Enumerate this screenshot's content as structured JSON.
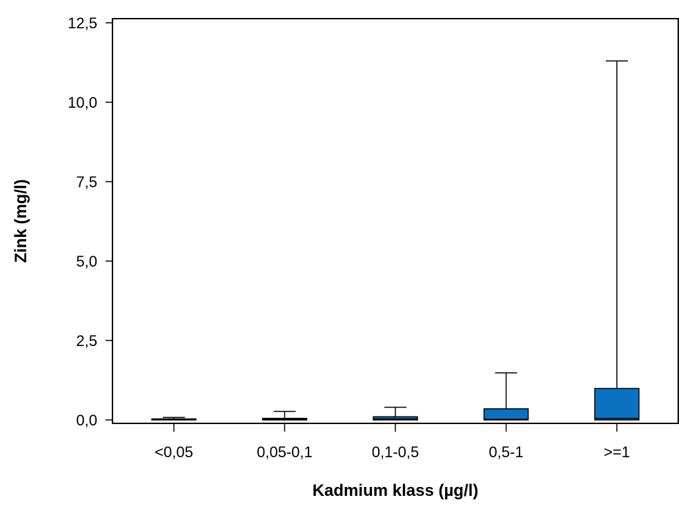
{
  "chart_data": {
    "type": "box",
    "title": "",
    "xlabel": "Kadmium klass (µg/l)",
    "ylabel": "Zink (mg/l)",
    "ylim": [
      -0.1,
      12.6
    ],
    "y_ticks": [
      0,
      2.5,
      5,
      7.5,
      10,
      12.5
    ],
    "y_tick_labels": [
      "0,0",
      "2,5",
      "5,0",
      "7,5",
      "10,0",
      "12,5"
    ],
    "categories": [
      "<0,05",
      "0,05-0,1",
      "0,1-0,5",
      "0,5-1",
      ">=1"
    ],
    "boxes": [
      {
        "category": "<0,05",
        "min": 0.0,
        "q1": 0.0,
        "median": 0.01,
        "q3": 0.03,
        "max": 0.08
      },
      {
        "category": "0,05-0,1",
        "min": 0.0,
        "q1": 0.0,
        "median": 0.02,
        "q3": 0.05,
        "max": 0.27
      },
      {
        "category": "0,1-0,5",
        "min": 0.0,
        "q1": 0.0,
        "median": 0.03,
        "q3": 0.1,
        "max": 0.4
      },
      {
        "category": "0,5-1",
        "min": 0.0,
        "q1": 0.0,
        "median": 0.02,
        "q3": 0.35,
        "max": 1.48
      },
      {
        "category": ">=1",
        "min": 0.0,
        "q1": 0.0,
        "median": 0.05,
        "q3": 0.99,
        "max": 11.3
      }
    ],
    "box_color": "#0a72c0",
    "grid": false,
    "legend": "none"
  }
}
